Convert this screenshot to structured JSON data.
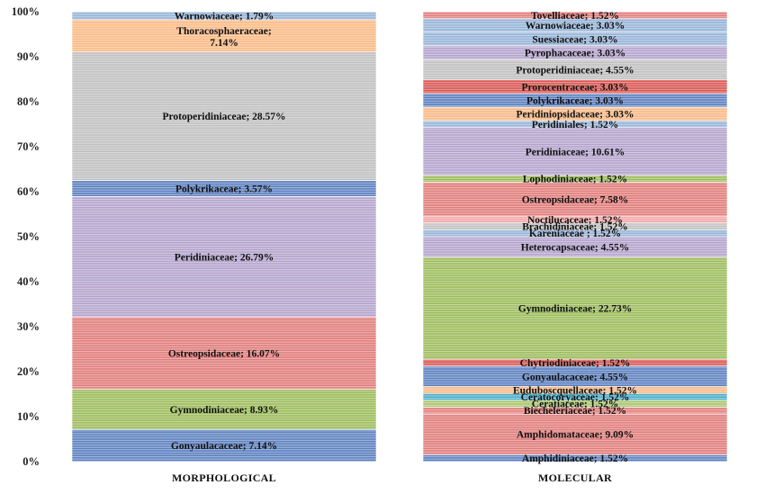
{
  "colors": {
    "blue": "#5b7fbf",
    "green": "#9bbb59",
    "red": "#e07b79",
    "purple": "#b3a2cc",
    "gray": "#bfbfbf",
    "orange": "#f9b883",
    "lightblue": "#95b3d7",
    "teal": "#4bacc6",
    "olive": "#a9c56b",
    "brightred": "#d9534f",
    "pink": "#f2a7a6"
  },
  "chart_data": {
    "type": "bar",
    "stacked": true,
    "percent": true,
    "ylim": [
      0,
      100
    ],
    "yticks": [
      "0%",
      "10%",
      "20%",
      "30%",
      "40%",
      "50%",
      "60%",
      "70%",
      "80%",
      "90%",
      "100%"
    ],
    "categories": [
      "MORPHOLOGICAL",
      "MOLECULAR"
    ],
    "bars": [
      {
        "category": "MORPHOLOGICAL",
        "segments": [
          {
            "name": "Gonyaulacaceae",
            "value": 7.14,
            "label": "Gonyaulacaceae; 7.14%",
            "color": "blue"
          },
          {
            "name": "Gymnodiniaceae",
            "value": 8.93,
            "label": "Gymnodiniaceae; 8.93%",
            "color": "green"
          },
          {
            "name": "Ostreopsidaceae",
            "value": 16.07,
            "label": "Ostreopsidaceae; 16.07%",
            "color": "red"
          },
          {
            "name": "Peridiniaceae",
            "value": 26.79,
            "label": "Peridiniaceae; 26.79%",
            "color": "purple"
          },
          {
            "name": "Polykrikaceae",
            "value": 3.57,
            "label": "Polykrikaceae; 3.57%",
            "color": "blue"
          },
          {
            "name": "Protoperidiniaceae",
            "value": 28.57,
            "label": "Protoperidiniaceae; 28.57%",
            "color": "gray"
          },
          {
            "name": "Thoracosphaeraceae",
            "value": 7.14,
            "label": "Thoracosphaeraceae;",
            "label2": "7.14%",
            "color": "orange"
          },
          {
            "name": "Warnowiaceae",
            "value": 1.79,
            "label": "Warnowiaceae; 1.79%",
            "color": "lightblue"
          }
        ]
      },
      {
        "category": "MOLECULAR",
        "segments": [
          {
            "name": "Amphidiniaceae",
            "value": 1.52,
            "label": "Amphidiniaceae; 1.52%",
            "color": "blue"
          },
          {
            "name": "Amphidomataceae",
            "value": 9.09,
            "label": "Amphidomataceae; 9.09%",
            "color": "red"
          },
          {
            "name": "Biecheleriaceae",
            "value": 1.52,
            "label": "Biecheleriaceae; 1.52%",
            "color": "red"
          },
          {
            "name": "Ceratiaceae",
            "value": 1.52,
            "label": "Ceratiaceae; 1.52%",
            "color": "olive"
          },
          {
            "name": "Ceratocoryaceae",
            "value": 1.52,
            "label": "Ceratocoryaceae; 1.52%",
            "color": "teal"
          },
          {
            "name": "Euduboscquellaceae",
            "value": 1.52,
            "label": "Euduboscquellaceae; 1.52%",
            "color": "orange"
          },
          {
            "name": "Gonyaulacaceae",
            "value": 4.55,
            "label": "Gonyaulacaceae; 4.55%",
            "color": "blue"
          },
          {
            "name": "Chytriodiniaceae",
            "value": 1.52,
            "label": "Chytriodiniaceae; 1.52%",
            "color": "brightred"
          },
          {
            "name": "Gymnodiniaceae",
            "value": 22.73,
            "label": "Gymnodiniaceae; 22.73%",
            "color": "green"
          },
          {
            "name": "Heterocapsaceae",
            "value": 4.55,
            "label": "Heterocapsaceae; 4.55%",
            "color": "purple"
          },
          {
            "name": "Kareniaceae",
            "value": 1.52,
            "label": "Kareniaceae ; 1.52%",
            "color": "lightblue"
          },
          {
            "name": "Brachidiniaceae",
            "value": 1.52,
            "label": "Brachidiniaceae; 1.52%",
            "color": "gray"
          },
          {
            "name": "Noctilucaceae",
            "value": 1.52,
            "label": "Noctilucaceae; 1.52%",
            "color": "pink"
          },
          {
            "name": "Ostreopsidaceae",
            "value": 7.58,
            "label": "Ostreopsidaceae; 7.58%",
            "color": "red"
          },
          {
            "name": "Lophodiniaceae",
            "value": 1.52,
            "label": "Lophodiniaceae; 1.52%",
            "color": "green"
          },
          {
            "name": "Peridiniaceae",
            "value": 10.61,
            "label": "Peridiniaceae; 10.61%",
            "color": "purple"
          },
          {
            "name": "Peridiniales",
            "value": 1.52,
            "label": "Peridiniales; 1.52%",
            "color": "lightblue"
          },
          {
            "name": "Peridiniopsidaceae",
            "value": 3.03,
            "label": "Peridiniopsidaceae; 3.03%",
            "color": "orange"
          },
          {
            "name": "Polykrikaceae",
            "value": 3.03,
            "label": "Polykrikaceae; 3.03%",
            "color": "blue"
          },
          {
            "name": "Prorocentraceae",
            "value": 3.03,
            "label": "Prorocentraceae; 3.03%",
            "color": "brightred"
          },
          {
            "name": "Protoperidiniaceae",
            "value": 4.55,
            "label": "Protoperidiniaceae; 4.55%",
            "color": "gray"
          },
          {
            "name": "Pyrophacaceae",
            "value": 3.03,
            "label": "Pyrophacaceae; 3.03%",
            "color": "purple"
          },
          {
            "name": "Suessiaceae",
            "value": 3.03,
            "label": "Suessiaceae; 3.03%",
            "color": "lightblue"
          },
          {
            "name": "Warnowiaceae",
            "value": 3.03,
            "label": "Warnowiaceae; 3.03%",
            "color": "lightblue"
          },
          {
            "name": "Tovelliaceae",
            "value": 1.52,
            "label": "Tovelliaceae; 1.52%",
            "color": "red"
          }
        ]
      }
    ]
  }
}
